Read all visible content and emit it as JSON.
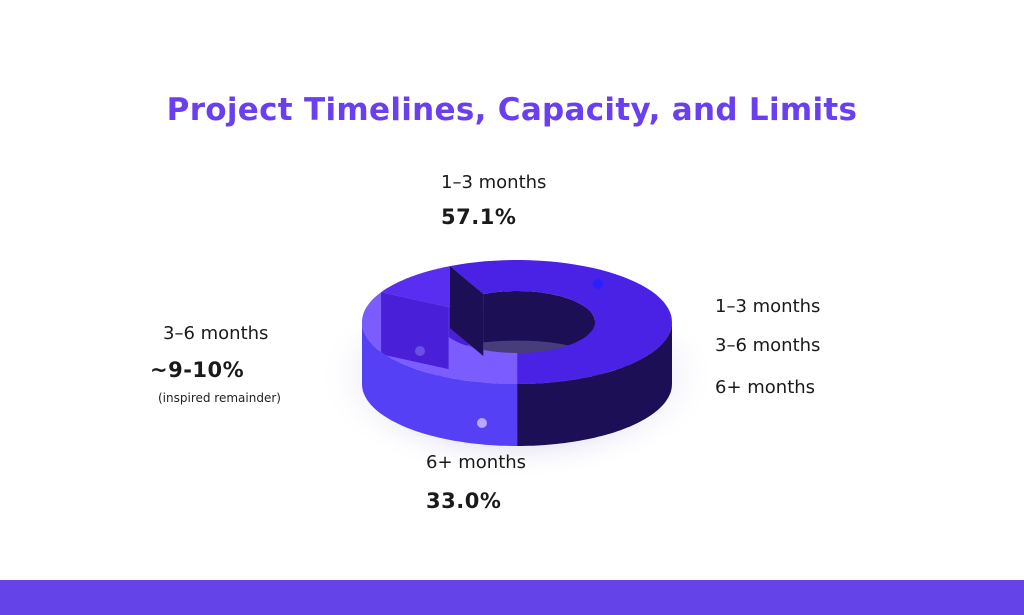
{
  "chart_data": {
    "type": "pie",
    "style": "3d-donut",
    "title": "Project Timelines, Capacity, and Limits",
    "slices": [
      {
        "label": "1–3 months",
        "value": 57.1,
        "value_label": "57.1%",
        "color_top": "#4a22e6",
        "color_side": "#1c0f55"
      },
      {
        "label": "6+ months",
        "value": 33.0,
        "value_label": "33.0%",
        "color_top": "#7b5cff",
        "color_side": "#5540f5"
      },
      {
        "label": "3–6 months",
        "value": 9.9,
        "value_label": "~9-10%",
        "note": "(inspired remainder)",
        "color_top": "#5a2ef0",
        "color_side": "#4a1fd8"
      }
    ],
    "legend": {
      "position": "right",
      "entries": [
        "1–3 months",
        "3–6 months",
        "6+ months"
      ]
    }
  },
  "colors": {
    "title": "#6a3ff0",
    "footer_band": "#6443e9"
  }
}
